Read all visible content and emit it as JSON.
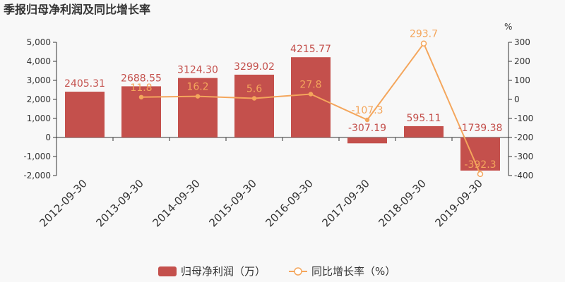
{
  "chart_data": {
    "type": "bar+line",
    "title": "季报归母净利润及同比增长率",
    "categories": [
      "2012-09-30",
      "2013-09-30",
      "2014-09-30",
      "2015-09-30",
      "2016-09-30",
      "2017-09-30",
      "2018-09-30",
      "2019-09-30"
    ],
    "series": [
      {
        "name": "归母净利润（万）",
        "type": "bar",
        "axis": "left",
        "color": "#c4504c",
        "values": [
          2405.31,
          2688.55,
          3124.3,
          3299.02,
          4215.77,
          -307.19,
          595.11,
          -1739.38
        ],
        "labels": [
          "2405.31",
          "2688.55",
          "3124.30",
          "3299.02",
          "4215.77",
          "-307.19",
          "595.11",
          "-1739.38"
        ]
      },
      {
        "name": "同比增长率（%）",
        "type": "line",
        "axis": "right",
        "color": "#f4a65c",
        "values": [
          null,
          11.8,
          16.2,
          5.6,
          27.8,
          -107.3,
          293.7,
          -392.3
        ],
        "labels": [
          "",
          "11.8",
          "16.2",
          "5.6",
          "27.8",
          "-107.3",
          "293.7",
          "-392.3"
        ]
      }
    ],
    "y_left": {
      "min": -2000,
      "max": 5000,
      "ticks": [
        -2000,
        -1000,
        0,
        1000,
        2000,
        3000,
        4000,
        5000
      ],
      "tick_labels": [
        "-2,000",
        "-1,000",
        "0",
        "1,000",
        "2,000",
        "3,000",
        "4,000",
        "5,000"
      ]
    },
    "y_right": {
      "min": -400,
      "max": 300,
      "unit": "%",
      "ticks": [
        -400,
        -300,
        -200,
        -100,
        0,
        100,
        200,
        300
      ],
      "tick_labels": [
        "-400",
        "-300",
        "-200",
        "-100",
        "0",
        "100",
        "200",
        "300"
      ]
    },
    "legend": {
      "placement": "bottom-center",
      "items": [
        "归母净利润（万）",
        "同比增长率（%）"
      ]
    }
  }
}
